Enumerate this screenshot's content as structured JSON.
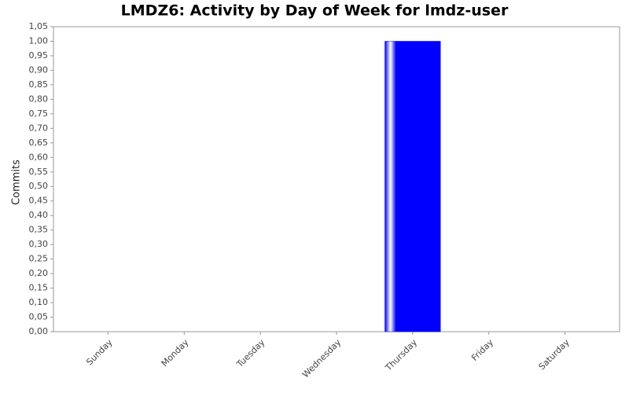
{
  "chart_data": {
    "type": "bar",
    "title": "LMDZ6: Activity by Day of Week for lmdz-user",
    "y_label": "Commits",
    "categories": [
      "Sunday",
      "Monday",
      "Tuesday",
      "Wednesday",
      "Thursday",
      "Friday",
      "Saturday"
    ],
    "values": [
      0,
      0,
      0,
      0,
      1,
      0,
      0
    ],
    "color": "#0000ff",
    "ylim": [
      0,
      1.05
    ],
    "yticks": [
      {
        "value": 0,
        "label": "0,00"
      },
      {
        "value": 0.05,
        "label": "0,05"
      },
      {
        "value": 0.1,
        "label": "0,10"
      },
      {
        "value": 0.15,
        "label": "0,15"
      },
      {
        "value": 0.2,
        "label": "0,20"
      },
      {
        "value": 0.25,
        "label": "0,25"
      },
      {
        "value": 0.3,
        "label": "0,30"
      },
      {
        "value": 0.35,
        "label": "0,35"
      },
      {
        "value": 0.4,
        "label": "0,40"
      },
      {
        "value": 0.45,
        "label": "0,45"
      },
      {
        "value": 0.5,
        "label": "0,50"
      },
      {
        "value": 0.55,
        "label": "0,55"
      },
      {
        "value": 0.6,
        "label": "0,60"
      },
      {
        "value": 0.65,
        "label": "0,65"
      },
      {
        "value": 0.7,
        "label": "0,70"
      },
      {
        "value": 0.75,
        "label": "0,75"
      },
      {
        "value": 0.8,
        "label": "0,80"
      },
      {
        "value": 0.85,
        "label": "0,85"
      },
      {
        "value": 0.9,
        "label": "0,90"
      },
      {
        "value": 0.95,
        "label": "0,95"
      },
      {
        "value": 1.0,
        "label": "1,00"
      },
      {
        "value": 1.05,
        "label": "1,05"
      }
    ],
    "grid": false
  }
}
